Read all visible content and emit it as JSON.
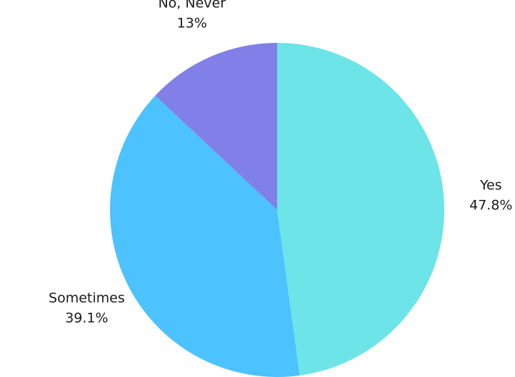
{
  "chart_data": {
    "type": "pie",
    "title": "",
    "slices": [
      {
        "label": "Yes",
        "value": 47.8,
        "value_label": "47.8%",
        "color": "#6ce4e8"
      },
      {
        "label": "Sometimes",
        "value": 39.1,
        "value_label": "39.1%",
        "color": "#4cc2ff"
      },
      {
        "label": "No, Never",
        "value": 13,
        "value_label": "13%",
        "color": "#8080e8"
      }
    ],
    "start": "12 o'clock",
    "direction": "clockwise",
    "legend": "none (labels placed outside slices)"
  }
}
